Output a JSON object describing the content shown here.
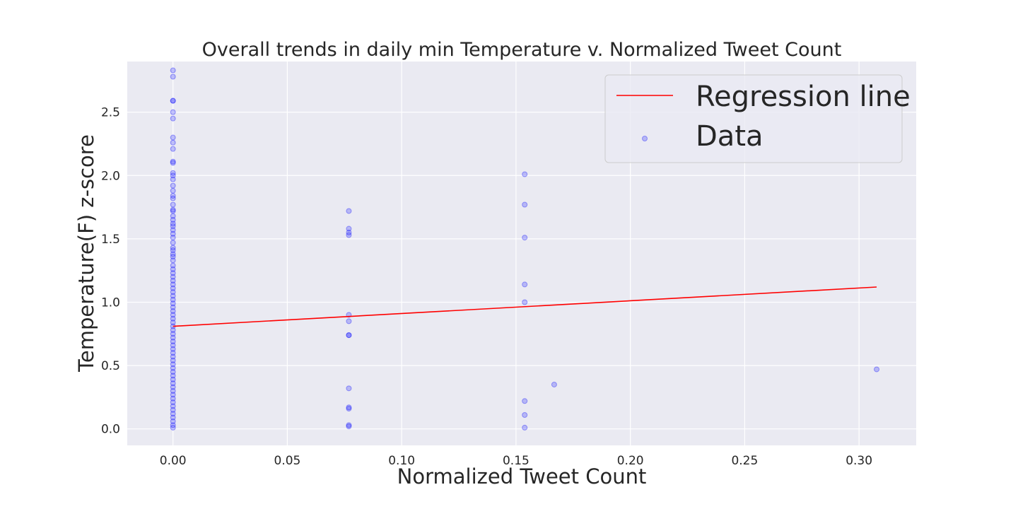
{
  "chart_data": {
    "type": "scatter",
    "title": "Overall trends in daily min Temperature v. Normalized Tweet Count",
    "xlabel": "Normalized Tweet Count",
    "ylabel": "Temperature(F) z-score",
    "xlim": [
      -0.02,
      0.325
    ],
    "ylim": [
      -0.13,
      2.9
    ],
    "x_ticks": [
      "0.00",
      "0.05",
      "0.10",
      "0.15",
      "0.20",
      "0.25",
      "0.30"
    ],
    "y_ticks": [
      "0.0",
      "0.5",
      "1.0",
      "1.5",
      "2.0",
      "2.5"
    ],
    "grid": true,
    "legend_position": "top-right",
    "colors": {
      "background": "#eaeaf2",
      "regression": "#ff0000",
      "data": "#0000ff"
    },
    "series": [
      {
        "name": "Regression line",
        "kind": "line",
        "x": [
          0.0,
          0.3077
        ],
        "y": [
          0.81,
          1.12
        ]
      },
      {
        "name": "Data",
        "kind": "scatter",
        "points": [
          [
            0,
            2.83
          ],
          [
            0,
            2.78
          ],
          [
            0,
            2.59
          ],
          [
            0,
            2.59
          ],
          [
            0,
            2.5
          ],
          [
            0,
            2.45
          ],
          [
            0,
            2.3
          ],
          [
            0,
            2.26
          ],
          [
            0,
            2.21
          ],
          [
            0,
            2.11
          ],
          [
            0,
            2.1
          ],
          [
            0,
            2.02
          ],
          [
            0,
            2.0
          ],
          [
            0,
            1.97
          ],
          [
            0,
            1.92
          ],
          [
            0,
            1.88
          ],
          [
            0,
            1.84
          ],
          [
            0,
            1.82
          ],
          [
            0,
            1.77
          ],
          [
            0,
            1.73
          ],
          [
            0,
            1.72
          ],
          [
            0,
            1.68
          ],
          [
            0,
            1.65
          ],
          [
            0,
            1.62
          ],
          [
            0,
            1.6
          ],
          [
            0,
            1.57
          ],
          [
            0,
            1.54
          ],
          [
            0,
            1.51
          ],
          [
            0,
            1.47
          ],
          [
            0,
            1.43
          ],
          [
            0,
            1.41
          ],
          [
            0,
            1.38
          ],
          [
            0,
            1.36
          ],
          [
            0,
            1.33
          ],
          [
            0,
            1.29
          ],
          [
            0,
            1.26
          ],
          [
            0,
            1.23
          ],
          [
            0,
            1.2
          ],
          [
            0,
            1.17
          ],
          [
            0,
            1.14
          ],
          [
            0,
            1.11
          ],
          [
            0,
            1.08
          ],
          [
            0,
            1.05
          ],
          [
            0,
            1.02
          ],
          [
            0,
            0.99
          ],
          [
            0,
            0.96
          ],
          [
            0,
            0.93
          ],
          [
            0,
            0.9
          ],
          [
            0,
            0.87
          ],
          [
            0,
            0.84
          ],
          [
            0,
            0.81
          ],
          [
            0,
            0.78
          ],
          [
            0,
            0.75
          ],
          [
            0,
            0.72
          ],
          [
            0,
            0.69
          ],
          [
            0,
            0.66
          ],
          [
            0,
            0.63
          ],
          [
            0,
            0.6
          ],
          [
            0,
            0.57
          ],
          [
            0,
            0.54
          ],
          [
            0,
            0.51
          ],
          [
            0,
            0.48
          ],
          [
            0,
            0.45
          ],
          [
            0,
            0.42
          ],
          [
            0,
            0.39
          ],
          [
            0,
            0.36
          ],
          [
            0,
            0.33
          ],
          [
            0,
            0.3
          ],
          [
            0,
            0.27
          ],
          [
            0,
            0.24
          ],
          [
            0,
            0.21
          ],
          [
            0,
            0.18
          ],
          [
            0,
            0.15
          ],
          [
            0,
            0.12
          ],
          [
            0,
            0.09
          ],
          [
            0,
            0.06
          ],
          [
            0,
            0.03
          ],
          [
            0,
            0.01
          ],
          [
            0.0769,
            1.72
          ],
          [
            0.0769,
            1.58
          ],
          [
            0.0769,
            1.55
          ],
          [
            0.0769,
            1.53
          ],
          [
            0.0769,
            0.9
          ],
          [
            0.0769,
            0.85
          ],
          [
            0.0769,
            0.74
          ],
          [
            0.0769,
            0.74
          ],
          [
            0.0769,
            0.32
          ],
          [
            0.0769,
            0.17
          ],
          [
            0.0769,
            0.16
          ],
          [
            0.0769,
            0.03
          ],
          [
            0.0769,
            0.02
          ],
          [
            0.1538,
            2.01
          ],
          [
            0.1538,
            1.77
          ],
          [
            0.1538,
            1.51
          ],
          [
            0.1538,
            1.14
          ],
          [
            0.1538,
            1.0
          ],
          [
            0.1538,
            0.22
          ],
          [
            0.1538,
            0.11
          ],
          [
            0.1538,
            0.01
          ],
          [
            0.1667,
            0.35
          ],
          [
            0.3077,
            0.47
          ]
        ]
      }
    ]
  }
}
